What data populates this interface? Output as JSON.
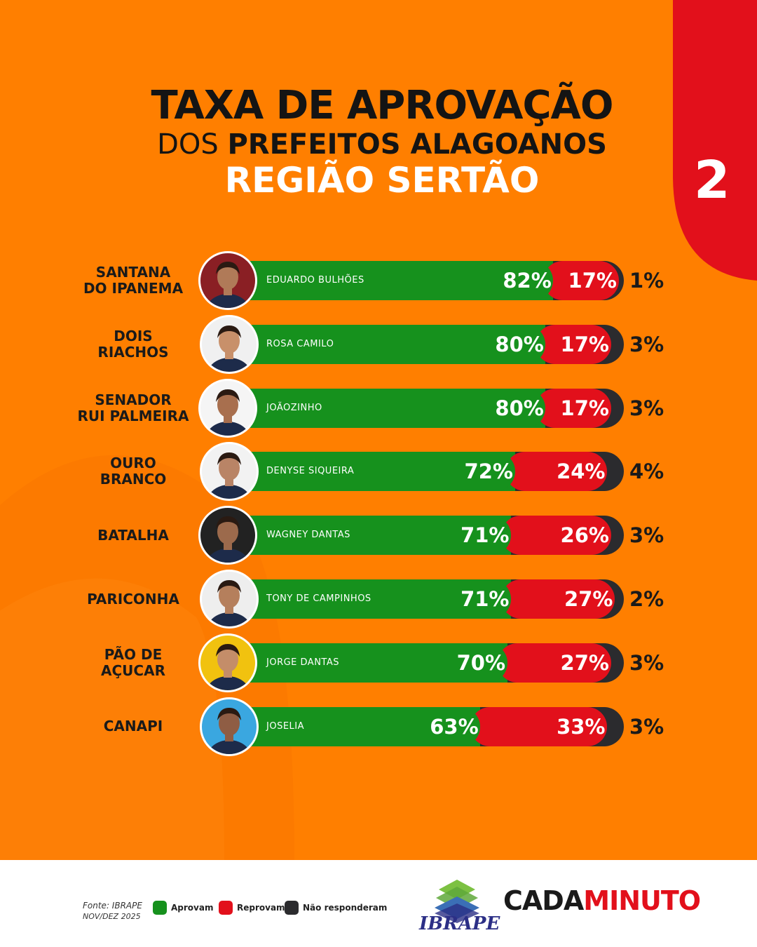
{
  "header": {
    "line1": "TAXA DE APROVAÇÃO",
    "line2_thin": "DOS ",
    "line2_bold": "PREFEITOS ALAGOANOS",
    "line3": "REGIÃO SERTÃO",
    "page_number": "2"
  },
  "colors": {
    "background": "#ff7f00",
    "approve": "#16911d",
    "disapprove": "#e2101b",
    "no_answer": "#2b2b2e",
    "corner_red": "#e2101b"
  },
  "chart_data": {
    "type": "bar",
    "stacked": true,
    "orientation": "horizontal",
    "series_names": [
      "Aprovam",
      "Reprovam",
      "Não responderam"
    ],
    "rows": [
      {
        "city": "SANTANA\nDO IPANEMA",
        "mayor": "EDUARDO BULHÕES",
        "approve": 82,
        "disapprove": 17,
        "no_answer": 1,
        "approve_label": "82%",
        "disapprove_label": "17%",
        "no_answer_label": "1%"
      },
      {
        "city": "DOIS\nRIACHOS",
        "mayor": "ROSA CAMILO",
        "approve": 80,
        "disapprove": 17,
        "no_answer": 3,
        "approve_label": "80%",
        "disapprove_label": "17%",
        "no_answer_label": "3%"
      },
      {
        "city": "SENADOR\nRUI PALMEIRA",
        "mayor": "JOÃOZINHO",
        "approve": 80,
        "disapprove": 17,
        "no_answer": 3,
        "approve_label": "80%",
        "disapprove_label": "17%",
        "no_answer_label": "3%"
      },
      {
        "city": "OURO\nBRANCO",
        "mayor": "DENYSE SIQUEIRA",
        "approve": 72,
        "disapprove": 24,
        "no_answer": 4,
        "approve_label": "72%",
        "disapprove_label": "24%",
        "no_answer_label": "4%"
      },
      {
        "city": "BATALHA",
        "mayor": "WAGNEY DANTAS",
        "approve": 71,
        "disapprove": 26,
        "no_answer": 3,
        "approve_label": "71%",
        "disapprove_label": "26%",
        "no_answer_label": "3%"
      },
      {
        "city": "PARICONHA",
        "mayor": "TONY DE CAMPINHOS",
        "approve": 71,
        "disapprove": 27,
        "no_answer": 2,
        "approve_label": "71%",
        "disapprove_label": "27%",
        "no_answer_label": "2%"
      },
      {
        "city": "PÃO DE\nAÇUCAR",
        "mayor": "JORGE DANTAS",
        "approve": 70,
        "disapprove": 27,
        "no_answer": 3,
        "approve_label": "70%",
        "disapprove_label": "27%",
        "no_answer_label": "3%"
      },
      {
        "city": "CANAPI",
        "mayor": "JOSELIA",
        "approve": 63,
        "disapprove": 33,
        "no_answer": 3,
        "approve_label": "63%",
        "disapprove_label": "33%",
        "no_answer_label": "3%"
      }
    ]
  },
  "footer": {
    "source_line1": "Fonte: IBRAPE",
    "source_line2": "NOV/DEZ 2025",
    "legend": [
      {
        "label": "Aprovam",
        "color": "#16911d"
      },
      {
        "label": "Reprovam",
        "color": "#e2101b"
      },
      {
        "label": "Não responderam",
        "color": "#2b2b2e"
      }
    ],
    "ibrape_logo_text": "IBRAPE",
    "brand_part1": "CADA",
    "brand_part2": "MINUTO"
  }
}
